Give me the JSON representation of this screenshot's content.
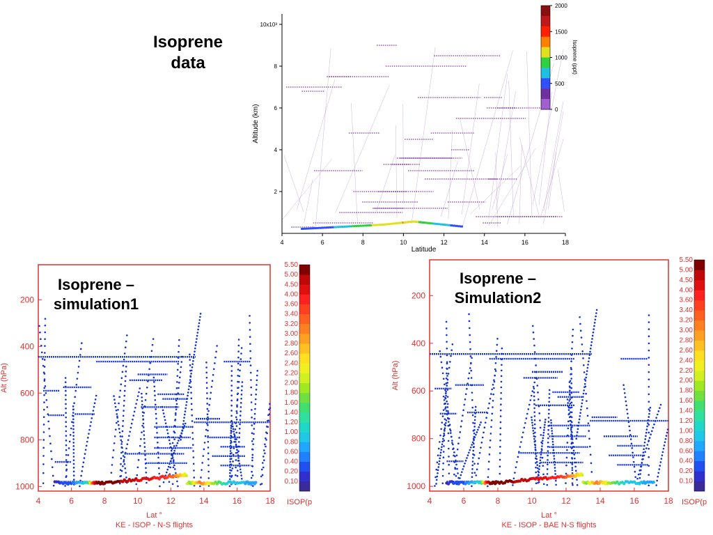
{
  "chart_data": [
    {
      "type": "scatter",
      "title": "Isoprene data",
      "xlabel": "Latitude",
      "ylabel": "Altitude (km)",
      "xlim": [
        4,
        18
      ],
      "ylim": [
        0,
        10.5
      ],
      "x_ticks": [
        "4",
        "6",
        "8",
        "10",
        "12",
        "14",
        "16",
        "18"
      ],
      "y_ticks": [
        "2",
        "4",
        "6",
        "8",
        "10x10³"
      ],
      "colorbar": {
        "label": "Isoprene (ppt)",
        "ticks": [
          "0",
          "500",
          "1000",
          "1500",
          "2000"
        ],
        "range": [
          0,
          2000
        ]
      },
      "flight_levels_km": [
        0.3,
        0.5,
        0.8,
        1.0,
        1.2,
        1.5,
        2.0,
        2.6,
        3.0,
        3.3,
        3.6,
        4.0,
        4.5,
        4.8,
        5.5,
        6.0,
        6.5,
        6.8,
        7.0,
        7.5,
        8.0,
        8.5,
        9.0
      ],
      "low_level_values": [
        {
          "lat": 5.0,
          "alt": 0.2,
          "value": 150
        },
        {
          "lat": 6.0,
          "alt": 0.25,
          "value": 300
        },
        {
          "lat": 7.0,
          "alt": 0.3,
          "value": 550
        },
        {
          "lat": 8.0,
          "alt": 0.35,
          "value": 900
        },
        {
          "lat": 9.0,
          "alt": 0.4,
          "value": 1150
        },
        {
          "lat": 10.0,
          "alt": 0.5,
          "value": 1300
        },
        {
          "lat": 10.5,
          "alt": 0.55,
          "value": 1100
        },
        {
          "lat": 11.0,
          "alt": 0.5,
          "value": 900
        },
        {
          "lat": 12.0,
          "alt": 0.4,
          "value": 500
        },
        {
          "lat": 13.0,
          "alt": 0.3,
          "value": 250
        }
      ]
    },
    {
      "type": "scatter",
      "title": "Isoprene – simulation1",
      "xlabel": "Lat °",
      "subtitle": "KE - ISOP  -   N-S flights",
      "ylabel": "Alt (hPa)",
      "xlim": [
        4,
        18
      ],
      "ylim": [
        1020,
        50
      ],
      "x_ticks": [
        "4",
        "6",
        "8",
        "10",
        "12",
        "14",
        "16",
        "18"
      ],
      "y_ticks": [
        "200",
        "400",
        "600",
        "800",
        "1000"
      ],
      "colorbar": {
        "label": "ISOP(p",
        "ticks": [
          "0.10",
          "0.20",
          "0.40",
          "0.60",
          "0.80",
          "1.00",
          "1.20",
          "1.40",
          "1.60",
          "1.80",
          "2.00",
          "2.20",
          "2.40",
          "2.60",
          "2.80",
          "3.00",
          "3.20",
          "3.40",
          "3.60",
          "4.00",
          "4.50",
          "5.00",
          "5.50"
        ]
      },
      "legs_hpa": [
        {
          "lat0": 4.0,
          "lat1": 13.5,
          "p": 445
        },
        {
          "lat0": 7.5,
          "lat1": 12.5,
          "p": 465
        },
        {
          "lat0": 15.2,
          "lat1": 16.8,
          "p": 465
        },
        {
          "lat0": 10.0,
          "lat1": 11.8,
          "p": 520
        },
        {
          "lat0": 9.5,
          "lat1": 11.5,
          "p": 545
        },
        {
          "lat0": 5.5,
          "lat1": 7.2,
          "p": 575
        },
        {
          "lat0": 4.3,
          "lat1": 5.3,
          "p": 590
        },
        {
          "lat0": 11.2,
          "lat1": 12.8,
          "p": 605
        },
        {
          "lat0": 11.5,
          "lat1": 13.0,
          "p": 625
        },
        {
          "lat0": 10.2,
          "lat1": 12.5,
          "p": 660
        },
        {
          "lat0": 6.2,
          "lat1": 7.4,
          "p": 690
        },
        {
          "lat0": 4.6,
          "lat1": 5.6,
          "p": 695
        },
        {
          "lat0": 13.4,
          "lat1": 18.0,
          "p": 725
        },
        {
          "lat0": 13.5,
          "lat1": 15.0,
          "p": 710
        },
        {
          "lat0": 11.0,
          "lat1": 13.4,
          "p": 745
        },
        {
          "lat0": 11.0,
          "lat1": 13.2,
          "p": 790
        },
        {
          "lat0": 14.2,
          "lat1": 16.2,
          "p": 790
        },
        {
          "lat0": 11.0,
          "lat1": 13.3,
          "p": 835
        },
        {
          "lat0": 15.0,
          "lat1": 16.5,
          "p": 830
        },
        {
          "lat0": 9.2,
          "lat1": 12.8,
          "p": 860
        },
        {
          "lat0": 14.5,
          "lat1": 16.5,
          "p": 870
        },
        {
          "lat0": 10.5,
          "lat1": 13.0,
          "p": 900
        },
        {
          "lat0": 5.0,
          "lat1": 6.0,
          "p": 895
        },
        {
          "lat0": 15.0,
          "lat1": 16.8,
          "p": 910
        },
        {
          "lat0": 5.0,
          "lat1": 7.0,
          "p": 980
        }
      ],
      "low_level_isop": [
        {
          "lat": 5.0,
          "value": 0.1
        },
        {
          "lat": 6.0,
          "value": 0.4
        },
        {
          "lat": 7.0,
          "value": 1.2
        },
        {
          "lat": 7.5,
          "value": 5.0
        },
        {
          "lat": 8.0,
          "value": 5.5
        },
        {
          "lat": 9.0,
          "value": 5.0
        },
        {
          "lat": 10.0,
          "value": 4.5
        },
        {
          "lat": 11.0,
          "value": 4.0
        },
        {
          "lat": 12.0,
          "value": 3.4
        },
        {
          "lat": 12.7,
          "value": 2.6
        },
        {
          "lat": 13.2,
          "value": 1.8
        },
        {
          "lat": 13.8,
          "value": 3.2
        },
        {
          "lat": 14.5,
          "value": 2.0
        },
        {
          "lat": 15.5,
          "value": 1.0
        },
        {
          "lat": 16.5,
          "value": 0.8
        },
        {
          "lat": 17.2,
          "value": 0.6
        }
      ]
    },
    {
      "type": "scatter",
      "title": "Isoprene – Simulation2",
      "xlabel": "Lat °",
      "subtitle": "KE - ISOP  -   BAE N-S flights",
      "ylabel": "Alt (hPa)",
      "xlim": [
        4,
        18
      ],
      "ylim": [
        1020,
        50
      ],
      "x_ticks": [
        "4",
        "6",
        "8",
        "10",
        "12",
        "14",
        "16",
        "18"
      ],
      "y_ticks": [
        "200",
        "400",
        "600",
        "800",
        "1000"
      ],
      "colorbar": {
        "label": "ISOP(p",
        "ticks": [
          "0.10",
          "0.20",
          "0.40",
          "0.60",
          "0.80",
          "1.00",
          "1.20",
          "1.40",
          "1.60",
          "1.80",
          "2.00",
          "2.20",
          "2.40",
          "2.60",
          "2.80",
          "3.00",
          "3.20",
          "3.40",
          "3.60",
          "4.00",
          "4.50",
          "5.00",
          "5.50"
        ]
      }
    }
  ]
}
